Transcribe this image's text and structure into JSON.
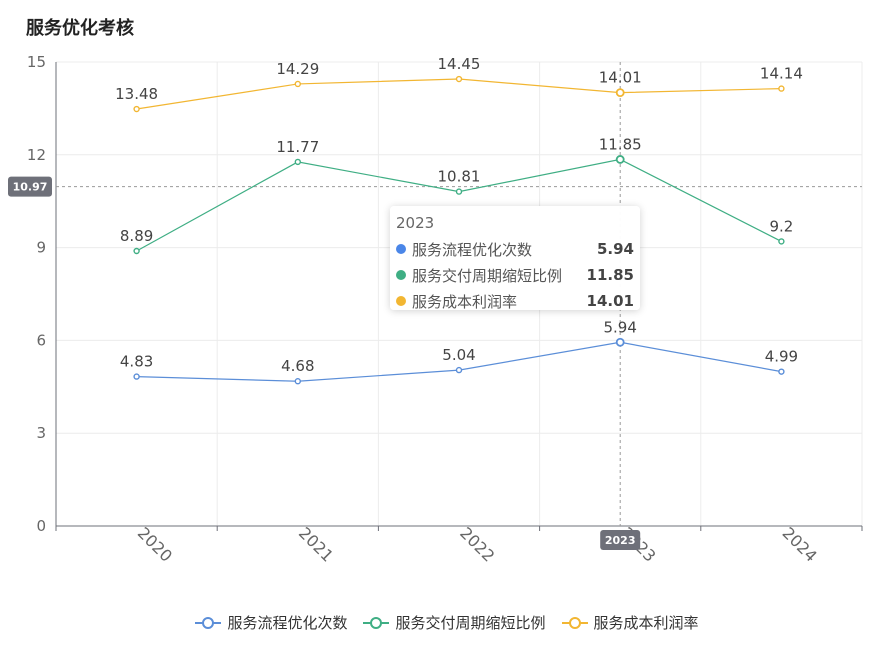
{
  "title": "服务优化考核",
  "chart_data": {
    "type": "line",
    "categories": [
      "2020",
      "2021",
      "2022",
      "2023",
      "2024"
    ],
    "ylim": [
      0,
      15
    ],
    "yticks": [
      "0",
      "3",
      "6",
      "9",
      "12",
      "15"
    ],
    "series": [
      {
        "name": "服务流程优化次数",
        "color": "#5b8ed8",
        "values": [
          4.83,
          4.68,
          5.04,
          5.94,
          4.99
        ]
      },
      {
        "name": "服务交付周期缩短比例",
        "color": "#3fae84",
        "values": [
          8.89,
          11.77,
          10.81,
          11.85,
          9.2
        ]
      },
      {
        "name": "服务成本利润率",
        "color": "#f2b632",
        "values": [
          13.48,
          14.29,
          14.45,
          14.01,
          14.14
        ]
      }
    ],
    "crosshair": {
      "x_label": "2023",
      "y_value": 10.97,
      "y_label": "10.97"
    },
    "tooltip": {
      "title": "2023",
      "rows": [
        {
          "name": "服务流程优化次数",
          "value": "5.94",
          "color": "#4a86e8"
        },
        {
          "name": "服务交付周期缩短比例",
          "value": "11.85",
          "color": "#3fae84"
        },
        {
          "name": "服务成本利润率",
          "value": "14.01",
          "color": "#f2b632"
        }
      ]
    }
  },
  "legend": {
    "items": [
      {
        "name": "服务流程优化次数",
        "color": "#5b8ed8"
      },
      {
        "name": "服务交付周期缩短比例",
        "color": "#3fae84"
      },
      {
        "name": "服务成本利润率",
        "color": "#f2b632"
      }
    ]
  }
}
